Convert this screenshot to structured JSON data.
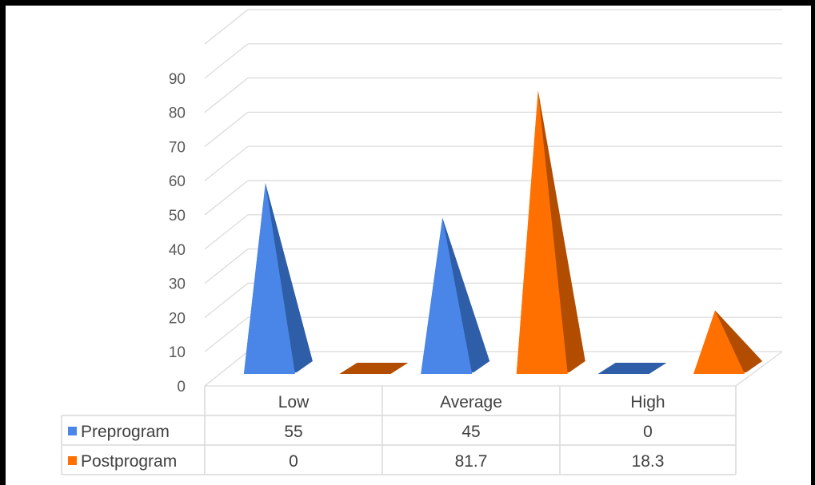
{
  "chart_data": {
    "type": "bar",
    "style": "3d-cone",
    "categories": [
      "Low",
      "Average",
      "High"
    ],
    "series": [
      {
        "name": "Preprogram",
        "values": [
          55,
          45,
          0
        ],
        "color": "#4a86e8",
        "shade": "#2f5ea8"
      },
      {
        "name": "Postprogram",
        "values": [
          0,
          81.7,
          18.3
        ],
        "color": "#ff7000",
        "shade": "#b24d00"
      }
    ],
    "y_ticks": [
      "0",
      "10",
      "20",
      "30",
      "40",
      "50",
      "60",
      "70",
      "80",
      "90"
    ],
    "ylim": [
      0,
      90
    ],
    "grid": true,
    "legend": "data-table",
    "table": [
      {
        "label": "Preprogram",
        "cells": [
          "55",
          "45",
          "0"
        ]
      },
      {
        "label": "Postprogram",
        "cells": [
          "0",
          "81.7",
          "18.3"
        ]
      }
    ]
  }
}
